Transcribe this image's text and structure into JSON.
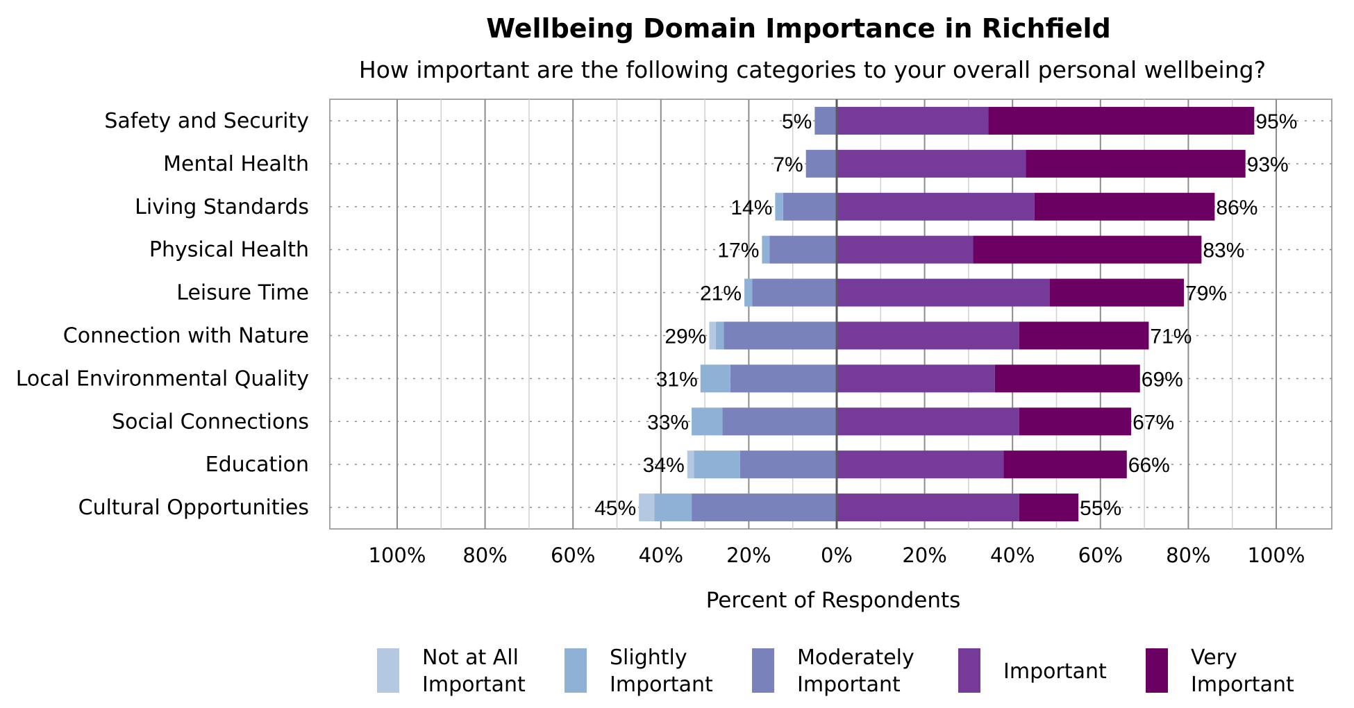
{
  "chart_data": {
    "type": "bar",
    "orientation": "horizontal",
    "stacked": "diverging",
    "title": "Wellbeing Domain Importance in Richfield",
    "subtitle": "How important are the following categories to your overall personal wellbeing?",
    "xlabel": "Percent of Respondents",
    "xlim": [
      -100,
      100
    ],
    "x_ticks": [
      -100,
      -80,
      -60,
      -40,
      -20,
      0,
      20,
      40,
      60,
      80,
      100
    ],
    "x_tick_labels": [
      "100%",
      "80%",
      "60%",
      "40%",
      "20%",
      "0%",
      "20%",
      "40%",
      "60%",
      "80%",
      "100%"
    ],
    "grid": true,
    "legend_position": "bottom",
    "categories": [
      "Safety and Security",
      "Mental Health",
      "Living Standards",
      "Physical Health",
      "Leisure Time",
      "Connection with Nature",
      "Local Environmental Quality",
      "Social Connections",
      "Education",
      "Cultural Opportunities"
    ],
    "series": [
      {
        "name": "Not at All Important",
        "side": "negative",
        "color": "#b4c9e1",
        "values": [
          0,
          0,
          0,
          0,
          0,
          1.5,
          0,
          0,
          1.5,
          3.5
        ]
      },
      {
        "name": "Slightly Important",
        "side": "negative",
        "color": "#8fb1d6",
        "values": [
          0,
          0,
          1.8,
          1.7,
          1.8,
          1.8,
          6.8,
          7,
          10.5,
          8.5
        ]
      },
      {
        "name": "Moderately Important",
        "side": "negative",
        "color": "#7a82bb",
        "values": [
          5,
          7,
          12.2,
          15.3,
          19.2,
          25.7,
          24.2,
          26,
          22,
          33
        ]
      },
      {
        "name": "Important",
        "side": "positive",
        "color": "#763b98",
        "values": [
          34.5,
          43,
          45,
          31,
          48.5,
          41.5,
          36,
          41.5,
          38,
          41.5
        ]
      },
      {
        "name": "Very Important",
        "side": "positive",
        "color": "#6b0062",
        "values": [
          60.5,
          50,
          41,
          52,
          30.5,
          29.5,
          33,
          25.5,
          28,
          13.5
        ]
      }
    ],
    "negative_totals": [
      "5%",
      "7%",
      "14%",
      "17%",
      "21%",
      "29%",
      "31%",
      "33%",
      "34%",
      "45%"
    ],
    "positive_totals": [
      "95%",
      "93%",
      "86%",
      "83%",
      "79%",
      "71%",
      "69%",
      "67%",
      "66%",
      "55%"
    ],
    "legend": [
      {
        "line1": "Not at All",
        "line2": "Important",
        "color": "#b4c9e1"
      },
      {
        "line1": "Slightly",
        "line2": "Important",
        "color": "#8fb1d6"
      },
      {
        "line1": "Moderately",
        "line2": "Important",
        "color": "#7a82bb"
      },
      {
        "line1": "Important",
        "line2": "",
        "color": "#763b98"
      },
      {
        "line1": "Very",
        "line2": "Important",
        "color": "#6b0062"
      }
    ],
    "colors": {
      "grid": "#a6a6a6",
      "frame": "#a6a6a6",
      "zero_line": "#595959"
    }
  }
}
